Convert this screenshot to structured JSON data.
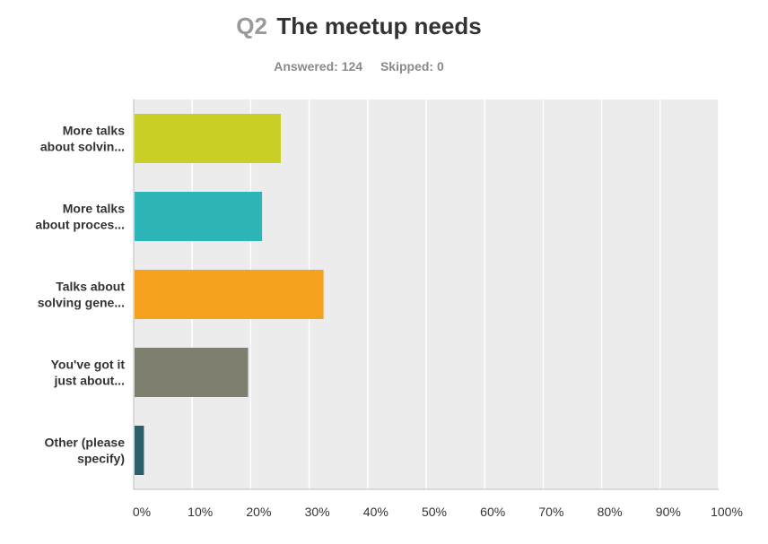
{
  "header": {
    "question_number": "Q2",
    "question_title": "The meetup needs",
    "answered": "Answered: 124",
    "skipped": "Skipped: 0"
  },
  "chart_data": {
    "type": "bar",
    "orientation": "horizontal",
    "categories": [
      [
        "More talks",
        "about solvin..."
      ],
      [
        "More talks",
        "about proces..."
      ],
      [
        "Talks about",
        "solving gene..."
      ],
      [
        "You've got it",
        "just about..."
      ],
      [
        "Other (please",
        "specify)"
      ]
    ],
    "values": [
      25,
      21.8,
      32.3,
      19.4,
      1.6
    ],
    "colors": [
      "#c9cf24",
      "#2eb5b8",
      "#f5a31f",
      "#7f7f6f",
      "#2a5f6b"
    ],
    "xlim": [
      0,
      100
    ],
    "ticks": [
      "0%",
      "10%",
      "20%",
      "30%",
      "40%",
      "50%",
      "60%",
      "70%",
      "80%",
      "90%",
      "100%"
    ],
    "grid": true,
    "background": "#ececec"
  }
}
